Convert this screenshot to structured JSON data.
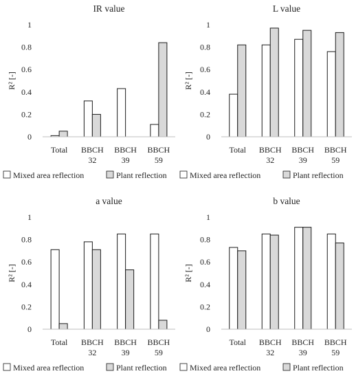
{
  "chart_data": [
    {
      "type": "bar",
      "title": "IR value",
      "ylabel": "R² [-]",
      "ylim": [
        0,
        1
      ],
      "yticks": [
        "0",
        "0.2",
        "0.4",
        "0.6",
        "0.8",
        "1"
      ],
      "categories": [
        [
          "Total"
        ],
        [
          "BBCH",
          "32"
        ],
        [
          "BBCH",
          "39"
        ],
        [
          "BBCH",
          "59"
        ]
      ],
      "series": [
        {
          "name": "Mixed area reflection",
          "values": [
            0.01,
            0.32,
            0.43,
            0.11
          ]
        },
        {
          "name": "Plant reflection",
          "values": [
            0.05,
            0.2,
            0.0,
            0.84
          ]
        }
      ],
      "grid": false,
      "legend": "bottom"
    },
    {
      "type": "bar",
      "title": "L value",
      "ylabel": "R² [-]",
      "ylim": [
        0,
        1
      ],
      "yticks": [
        "0",
        "0.2",
        "0.4",
        "0.6",
        "0.8",
        "1"
      ],
      "categories": [
        [
          "Total"
        ],
        [
          "BBCH",
          "32"
        ],
        [
          "BBCH",
          "39"
        ],
        [
          "BBCH",
          "59"
        ]
      ],
      "series": [
        {
          "name": "Mixed area reflection",
          "values": [
            0.38,
            0.82,
            0.87,
            0.76
          ]
        },
        {
          "name": "Plant reflection",
          "values": [
            0.82,
            0.97,
            0.95,
            0.93
          ]
        }
      ],
      "grid": false,
      "legend": "bottom"
    },
    {
      "type": "bar",
      "title": "a value",
      "ylabel": "R² [-]",
      "ylim": [
        0,
        1
      ],
      "yticks": [
        "0",
        "0.2",
        "0.4",
        "0.6",
        "0.8",
        "1"
      ],
      "categories": [
        [
          "Total"
        ],
        [
          "BBCH",
          "32"
        ],
        [
          "BBCH",
          "39"
        ],
        [
          "BBCH",
          "59"
        ]
      ],
      "series": [
        {
          "name": "Mixed area reflection",
          "values": [
            0.71,
            0.78,
            0.85,
            0.85
          ]
        },
        {
          "name": "Plant reflection",
          "values": [
            0.05,
            0.71,
            0.53,
            0.08
          ]
        }
      ],
      "grid": false,
      "legend": "bottom"
    },
    {
      "type": "bar",
      "title": "b value",
      "ylabel": "R² [-]",
      "ylim": [
        0,
        1
      ],
      "yticks": [
        "0",
        "0.2",
        "0.4",
        "0.6",
        "0.8",
        "1"
      ],
      "categories": [
        [
          "Total"
        ],
        [
          "BBCH",
          "32"
        ],
        [
          "BBCH",
          "39"
        ],
        [
          "BBCH",
          "59"
        ]
      ],
      "series": [
        {
          "name": "Mixed area reflection",
          "values": [
            0.73,
            0.85,
            0.91,
            0.85
          ]
        },
        {
          "name": "Plant reflection",
          "values": [
            0.7,
            0.84,
            0.91,
            0.77
          ]
        }
      ],
      "grid": false,
      "legend": "bottom"
    }
  ],
  "colors": {
    "mixed_fill": "#ffffff",
    "plant_fill": "#d9d9d9",
    "bar_stroke": "#1a1a1a",
    "axis": "#bfbfbf",
    "text": "#222222"
  }
}
